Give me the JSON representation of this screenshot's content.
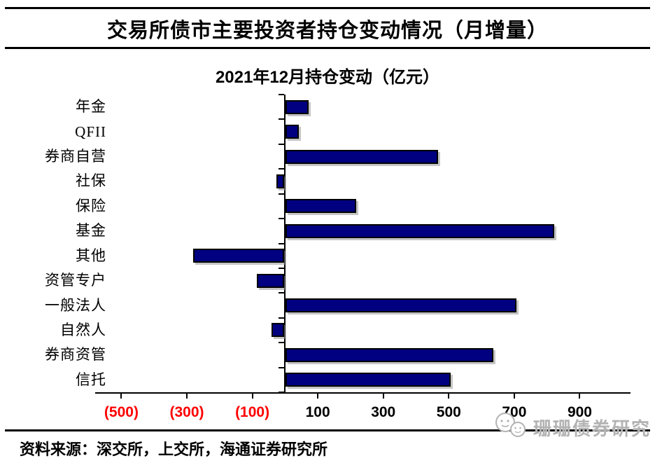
{
  "header": {
    "title": "交易所债市主要投资者持仓变动情况（月增量）"
  },
  "chart_data": {
    "type": "bar",
    "orientation": "horizontal",
    "title": "2021年12月持仓变动（亿元）",
    "categories": [
      "年金",
      "QFII",
      "券商自营",
      "社保",
      "保险",
      "基金",
      "其他",
      "资管专户",
      "一般法人",
      "自然人",
      "券商资管",
      "信托"
    ],
    "values": [
      65,
      35,
      460,
      -20,
      210,
      815,
      -275,
      -80,
      700,
      -35,
      630,
      500
    ],
    "x_ticks": [
      -500,
      -300,
      -100,
      100,
      300,
      500,
      700,
      900
    ],
    "x_tick_labels": [
      "(500)",
      "(300)",
      "(100)",
      "100",
      "300",
      "500",
      "700",
      "900"
    ],
    "xlim": [
      -580,
      1055
    ],
    "grid": false,
    "legend": "none",
    "bar_color": "#000080",
    "bar_border_color": "#000000",
    "axis_color": "#000000",
    "negative_label_color": "#ff0000",
    "positive_label_color": "#000000"
  },
  "footer": {
    "source": "资料来源：深交所，上交所，海通证券研究所"
  },
  "watermark": {
    "text": "珊珊债券研究",
    "icon": "chat-bubbles-logo"
  }
}
